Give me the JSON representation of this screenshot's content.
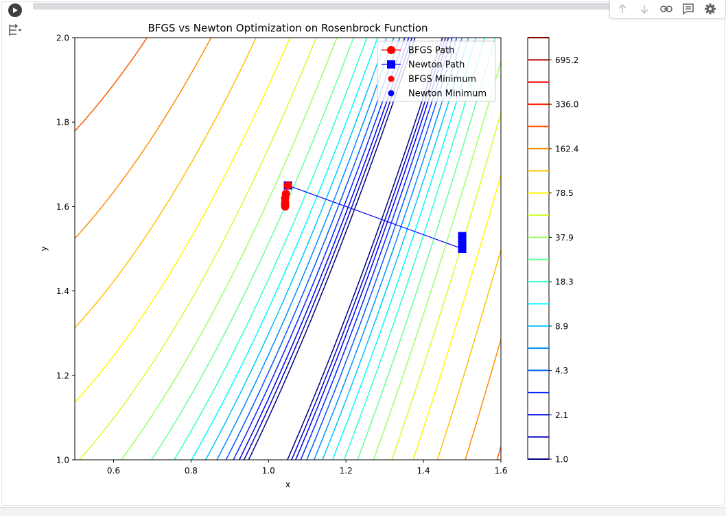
{
  "toolbar": {
    "icons": [
      "arrow-up-icon",
      "arrow-down-icon",
      "link-icon",
      "comment-icon",
      "gear-icon"
    ]
  },
  "chart_data": {
    "type": "line",
    "title": "BFGS vs Newton Optimization on Rosenbrock Function",
    "xlabel": "x",
    "ylabel": "y",
    "xlim": [
      0.5,
      1.6
    ],
    "ylim": [
      1.0,
      2.0
    ],
    "x_ticks": [
      "0.6",
      "0.8",
      "1.0",
      "1.2",
      "1.4",
      "1.6"
    ],
    "y_ticks": [
      "1.0",
      "1.2",
      "1.4",
      "1.6",
      "1.8",
      "2.0"
    ],
    "grid": false,
    "legend_position": "top-right",
    "series": [
      {
        "name": "BFGS Path",
        "color": "#ff0000",
        "marker": "circle",
        "x": [
          1.05,
          1.045,
          1.043,
          1.043,
          1.043,
          1.043
        ],
        "y": [
          1.65,
          1.63,
          1.62,
          1.61,
          1.605,
          1.6
        ]
      },
      {
        "name": "Newton Path",
        "color": "#0000ff",
        "marker": "square",
        "x": [
          1.05,
          1.5,
          1.5,
          1.5,
          1.5
        ],
        "y": [
          1.65,
          1.5,
          1.51,
          1.52,
          1.53
        ]
      },
      {
        "name": "BFGS Minimum",
        "color": "#ff0000",
        "marker": "dot",
        "x": [
          1.043
        ],
        "y": [
          1.6
        ]
      },
      {
        "name": "Newton Minimum",
        "color": "#0000ff",
        "marker": "dot",
        "x": [
          1.5
        ],
        "y": [
          1.5
        ]
      }
    ],
    "contour": {
      "function": "Rosenbrock",
      "colormap": "jet",
      "levels": [
        1.0,
        1.5,
        2.1,
        3.0,
        4.3,
        6.2,
        8.9,
        12.8,
        18.3,
        26.3,
        37.9,
        54.5,
        78.5,
        112.9,
        162.4,
        233.7,
        336.0,
        483.2,
        695.2,
        1000.0
      ],
      "colorbar_ticks": [
        "1.0",
        "2.1",
        "4.3",
        "8.9",
        "18.3",
        "37.9",
        "78.5",
        "162.4",
        "336.0",
        "695.2"
      ]
    }
  }
}
